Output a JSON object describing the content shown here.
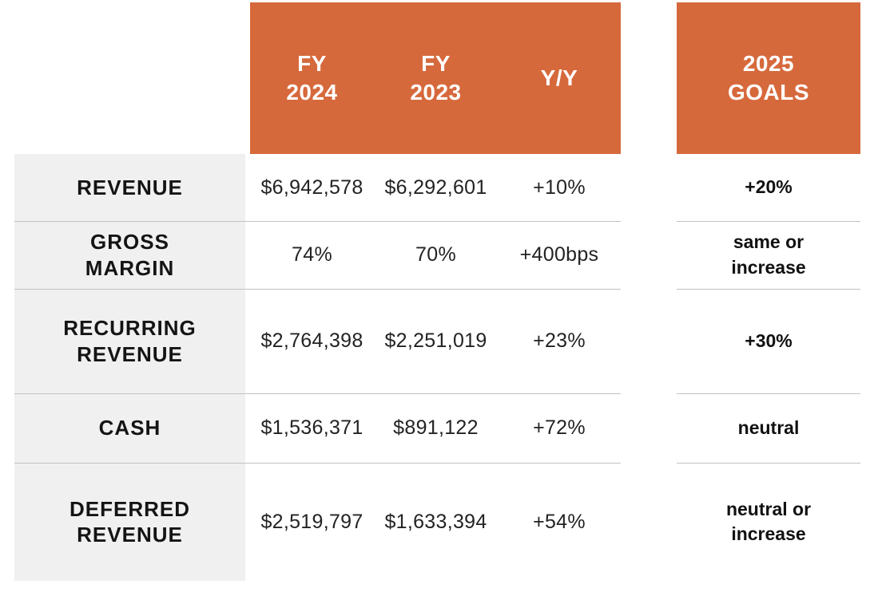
{
  "colors": {
    "header_bg": "#D6693C",
    "header_text": "#FFFFFF",
    "label_column_bg": "#F0F0F0",
    "divider": "#C2C2C2",
    "label_text": "#141414",
    "value_text": "#232323"
  },
  "header": {
    "fy2024": "FY\n2024",
    "fy2023": "FY\n2023",
    "yoy": "Y/Y",
    "goals": "2025\nGOALS"
  },
  "rows": [
    {
      "label": "REVENUE",
      "fy2024": "$6,942,578",
      "fy2023": "$6,292,601",
      "yoy": "+10%",
      "goal": "+20%"
    },
    {
      "label": "GROSS\nMARGIN",
      "fy2024": "74%",
      "fy2023": "70%",
      "yoy": "+400bps",
      "goal": "same or\nincrease"
    },
    {
      "label": "RECURRING\nREVENUE",
      "fy2024": "$2,764,398",
      "fy2023": "$2,251,019",
      "yoy": "+23%",
      "goal": "+30%"
    },
    {
      "label": "CASH",
      "fy2024": "$1,536,371",
      "fy2023": "$891,122",
      "yoy": "+72%",
      "goal": "neutral"
    },
    {
      "label": "DEFERRED\nREVENUE",
      "fy2024": "$2,519,797",
      "fy2023": "$1,633,394",
      "yoy": "+54%",
      "goal": "neutral or\nincrease"
    }
  ],
  "chart_data": {
    "type": "table",
    "columns": [
      "",
      "FY 2024",
      "FY 2023",
      "Y/Y",
      "2025 GOALS"
    ],
    "rows": [
      [
        "REVENUE",
        "$6,942,578",
        "$6,292,601",
        "+10%",
        "+20%"
      ],
      [
        "GROSS MARGIN",
        "74%",
        "70%",
        "+400bps",
        "same or increase"
      ],
      [
        "RECURRING REVENUE",
        "$2,764,398",
        "$2,251,019",
        "+23%",
        "+30%"
      ],
      [
        "CASH",
        "$1,536,371",
        "$891,122",
        "+72%",
        "neutral"
      ],
      [
        "DEFERRED REVENUE",
        "$2,519,797",
        "$1,633,394",
        "+54%",
        "neutral or increase"
      ]
    ]
  }
}
